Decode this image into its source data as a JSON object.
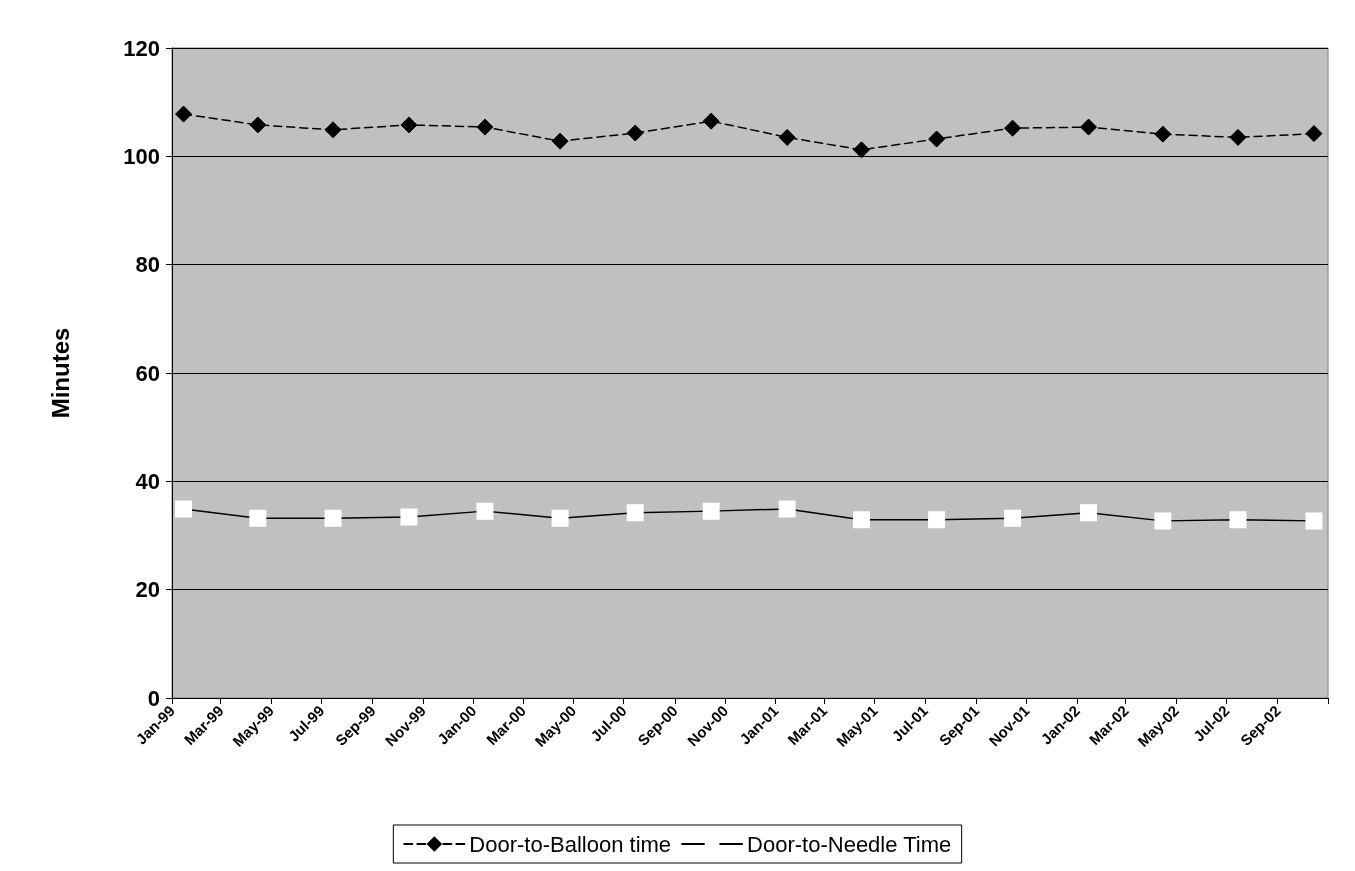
{
  "chart_data": {
    "type": "line",
    "ylabel": "Minutes",
    "x": [
      "1999-01-15",
      "1999-04-15",
      "1999-07-15",
      "1999-10-15",
      "2000-01-15",
      "2000-04-15",
      "2000-07-15",
      "2000-10-15",
      "2001-01-15",
      "2001-04-15",
      "2001-07-15",
      "2001-10-15",
      "2002-01-15",
      "2002-04-15",
      "2002-07-15",
      "2002-10-15"
    ],
    "series": [
      {
        "name": "Door-to-Balloon time",
        "color": "#000000",
        "marker": "diamond",
        "line_style": "dashed",
        "values": [
          107.8,
          105.8,
          104.9,
          105.8,
          105.4,
          102.8,
          104.3,
          106.5,
          103.5,
          101.2,
          103.2,
          105.2,
          105.4,
          104.1,
          103.5,
          104.2
        ]
      },
      {
        "name": "Door-to-Needle Time",
        "color": "#000000",
        "marker": "square",
        "line_style": "solid",
        "values": [
          34.9,
          33.2,
          33.2,
          33.4,
          34.5,
          33.2,
          34.2,
          34.5,
          34.9,
          32.9,
          32.9,
          33.2,
          34.2,
          32.7,
          32.9,
          32.7
        ]
      }
    ],
    "xlim": [
      "1999-01-01",
      "2002-11-01"
    ],
    "xticks": [
      {
        "value": "1999-01-01",
        "label": "Jan-99"
      },
      {
        "value": "1999-03-01",
        "label": "Mar-99"
      },
      {
        "value": "1999-05-01",
        "label": "May-99"
      },
      {
        "value": "1999-07-01",
        "label": "Jul-99"
      },
      {
        "value": "1999-09-01",
        "label": "Sep-99"
      },
      {
        "value": "1999-11-01",
        "label": "Nov-99"
      },
      {
        "value": "2000-01-01",
        "label": "Jan-00"
      },
      {
        "value": "2000-03-01",
        "label": "Mar-00"
      },
      {
        "value": "2000-05-01",
        "label": "May-00"
      },
      {
        "value": "2000-07-01",
        "label": "Jul-00"
      },
      {
        "value": "2000-09-01",
        "label": "Sep-00"
      },
      {
        "value": "2000-11-01",
        "label": "Nov-00"
      },
      {
        "value": "2001-01-01",
        "label": "Jan-01"
      },
      {
        "value": "2001-03-01",
        "label": "Mar-01"
      },
      {
        "value": "2001-05-01",
        "label": "May-01"
      },
      {
        "value": "2001-07-01",
        "label": "Jul-01"
      },
      {
        "value": "2001-09-01",
        "label": "Sep-01"
      },
      {
        "value": "2001-11-01",
        "label": "Nov-01"
      },
      {
        "value": "2002-01-01",
        "label": "Jan-02"
      },
      {
        "value": "2002-03-01",
        "label": "Mar-02"
      },
      {
        "value": "2002-05-01",
        "label": "May-02"
      },
      {
        "value": "2002-07-01",
        "label": "Jul-02"
      },
      {
        "value": "2002-09-01",
        "label": "Sep-02"
      },
      {
        "value": "2002-11-01",
        "label": null
      }
    ],
    "ylim": [
      0,
      120
    ],
    "yticks": [
      0,
      20,
      40,
      60,
      80,
      100,
      120
    ],
    "grid": "y",
    "legend": "bottom"
  }
}
